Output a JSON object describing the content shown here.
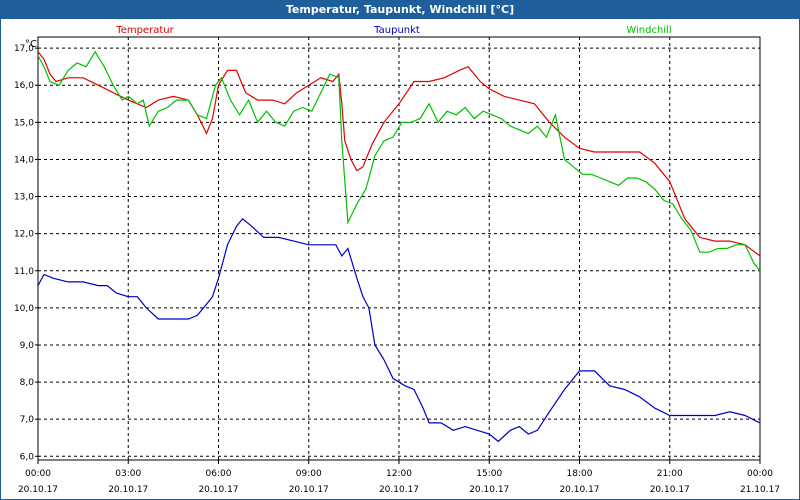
{
  "title": "Temperatur, Taupunkt, Windchill [°C]",
  "chart_data": {
    "type": "line",
    "title": "Temperatur, Taupunkt, Windchill [°C]",
    "ylabel": "°C",
    "xlabel": "",
    "ylim": [
      5.9,
      17.3
    ],
    "xlim": [
      0,
      24
    ],
    "grid": true,
    "y_ticks": [
      "17,0",
      "16,0",
      "15,0",
      "14,0",
      "13,0",
      "12,0",
      "11,0",
      "10,0",
      "9,0",
      "8,0",
      "7,0",
      "6,0"
    ],
    "x_ticks": [
      {
        "time": "00:00",
        "date": "20.10.17"
      },
      {
        "time": "03:00",
        "date": "20.10.17"
      },
      {
        "time": "06:00",
        "date": "20.10.17"
      },
      {
        "time": "09:00",
        "date": "20.10.17"
      },
      {
        "time": "12:00",
        "date": "20.10.17"
      },
      {
        "time": "15:00",
        "date": "20.10.17"
      },
      {
        "time": "18:00",
        "date": "20.10.17"
      },
      {
        "time": "21:00",
        "date": "20.10.17"
      },
      {
        "time": "00:00",
        "date": "21.10.17"
      }
    ],
    "series": [
      {
        "name": "Temperatur",
        "color": "#e00000",
        "points": [
          [
            0,
            16.9
          ],
          [
            0.2,
            16.7
          ],
          [
            0.4,
            16.3
          ],
          [
            0.6,
            16.1
          ],
          [
            1.0,
            16.2
          ],
          [
            1.5,
            16.2
          ],
          [
            2.0,
            16.0
          ],
          [
            2.5,
            15.8
          ],
          [
            3.0,
            15.6
          ],
          [
            3.3,
            15.5
          ],
          [
            3.6,
            15.4
          ],
          [
            4.0,
            15.6
          ],
          [
            4.5,
            15.7
          ],
          [
            5.0,
            15.6
          ],
          [
            5.3,
            15.2
          ],
          [
            5.6,
            14.7
          ],
          [
            5.8,
            15.1
          ],
          [
            6.0,
            16.0
          ],
          [
            6.3,
            16.4
          ],
          [
            6.6,
            16.4
          ],
          [
            6.9,
            15.8
          ],
          [
            7.3,
            15.6
          ],
          [
            7.8,
            15.6
          ],
          [
            8.2,
            15.5
          ],
          [
            8.6,
            15.8
          ],
          [
            9.0,
            16.0
          ],
          [
            9.4,
            16.2
          ],
          [
            9.8,
            16.1
          ],
          [
            10.0,
            16.3
          ],
          [
            10.1,
            15.5
          ],
          [
            10.2,
            14.5
          ],
          [
            10.4,
            14.0
          ],
          [
            10.6,
            13.7
          ],
          [
            10.8,
            13.8
          ],
          [
            11.1,
            14.4
          ],
          [
            11.5,
            15.0
          ],
          [
            12.0,
            15.5
          ],
          [
            12.5,
            16.1
          ],
          [
            13.0,
            16.1
          ],
          [
            13.5,
            16.2
          ],
          [
            14.0,
            16.4
          ],
          [
            14.3,
            16.5
          ],
          [
            14.7,
            16.1
          ],
          [
            15.0,
            15.9
          ],
          [
            15.5,
            15.7
          ],
          [
            16.0,
            15.6
          ],
          [
            16.5,
            15.5
          ],
          [
            17.0,
            15.0
          ],
          [
            17.5,
            14.6
          ],
          [
            18.0,
            14.3
          ],
          [
            18.5,
            14.2
          ],
          [
            19.0,
            14.2
          ],
          [
            19.5,
            14.2
          ],
          [
            20.0,
            14.2
          ],
          [
            20.5,
            13.9
          ],
          [
            21.0,
            13.4
          ],
          [
            21.5,
            12.4
          ],
          [
            22.0,
            11.9
          ],
          [
            22.5,
            11.8
          ],
          [
            23.0,
            11.8
          ],
          [
            23.5,
            11.7
          ],
          [
            24.0,
            11.4
          ]
        ]
      },
      {
        "name": "Taupunkt",
        "color": "#0000c8",
        "points": [
          [
            0,
            10.6
          ],
          [
            0.2,
            10.9
          ],
          [
            0.5,
            10.8
          ],
          [
            1.0,
            10.7
          ],
          [
            1.5,
            10.7
          ],
          [
            2.0,
            10.6
          ],
          [
            2.3,
            10.6
          ],
          [
            2.6,
            10.4
          ],
          [
            3.0,
            10.3
          ],
          [
            3.3,
            10.3
          ],
          [
            3.6,
            10.0
          ],
          [
            4.0,
            9.7
          ],
          [
            4.5,
            9.7
          ],
          [
            5.0,
            9.7
          ],
          [
            5.3,
            9.8
          ],
          [
            5.6,
            10.1
          ],
          [
            5.8,
            10.3
          ],
          [
            6.0,
            10.8
          ],
          [
            6.3,
            11.7
          ],
          [
            6.6,
            12.2
          ],
          [
            6.8,
            12.4
          ],
          [
            7.1,
            12.2
          ],
          [
            7.5,
            11.9
          ],
          [
            8.0,
            11.9
          ],
          [
            8.5,
            11.8
          ],
          [
            9.0,
            11.7
          ],
          [
            9.5,
            11.7
          ],
          [
            9.9,
            11.7
          ],
          [
            10.1,
            11.4
          ],
          [
            10.3,
            11.6
          ],
          [
            10.6,
            10.8
          ],
          [
            10.8,
            10.3
          ],
          [
            11.0,
            10.0
          ],
          [
            11.2,
            9.0
          ],
          [
            11.5,
            8.6
          ],
          [
            11.8,
            8.1
          ],
          [
            12.2,
            7.9
          ],
          [
            12.5,
            7.8
          ],
          [
            12.8,
            7.3
          ],
          [
            13.0,
            6.9
          ],
          [
            13.4,
            6.9
          ],
          [
            13.8,
            6.7
          ],
          [
            14.2,
            6.8
          ],
          [
            14.6,
            6.7
          ],
          [
            15.0,
            6.6
          ],
          [
            15.3,
            6.4
          ],
          [
            15.7,
            6.7
          ],
          [
            16.0,
            6.8
          ],
          [
            16.3,
            6.6
          ],
          [
            16.6,
            6.7
          ],
          [
            17.0,
            7.2
          ],
          [
            17.5,
            7.8
          ],
          [
            18.0,
            8.3
          ],
          [
            18.5,
            8.3
          ],
          [
            19.0,
            7.9
          ],
          [
            19.5,
            7.8
          ],
          [
            20.0,
            7.6
          ],
          [
            20.5,
            7.3
          ],
          [
            21.0,
            7.1
          ],
          [
            21.5,
            7.1
          ],
          [
            22.0,
            7.1
          ],
          [
            22.5,
            7.1
          ],
          [
            23.0,
            7.2
          ],
          [
            23.5,
            7.1
          ],
          [
            24.0,
            6.9
          ]
        ]
      },
      {
        "name": "Windchill",
        "color": "#00c000",
        "points": [
          [
            0,
            16.8
          ],
          [
            0.2,
            16.5
          ],
          [
            0.4,
            16.1
          ],
          [
            0.7,
            16.0
          ],
          [
            1.0,
            16.4
          ],
          [
            1.3,
            16.6
          ],
          [
            1.6,
            16.5
          ],
          [
            1.9,
            16.9
          ],
          [
            2.2,
            16.5
          ],
          [
            2.5,
            16.0
          ],
          [
            2.8,
            15.6
          ],
          [
            3.0,
            15.7
          ],
          [
            3.3,
            15.5
          ],
          [
            3.5,
            15.6
          ],
          [
            3.7,
            14.9
          ],
          [
            4.0,
            15.3
          ],
          [
            4.3,
            15.4
          ],
          [
            4.6,
            15.6
          ],
          [
            5.0,
            15.6
          ],
          [
            5.3,
            15.2
          ],
          [
            5.6,
            15.1
          ],
          [
            5.9,
            16.0
          ],
          [
            6.1,
            16.2
          ],
          [
            6.4,
            15.6
          ],
          [
            6.7,
            15.2
          ],
          [
            7.0,
            15.6
          ],
          [
            7.3,
            15.0
          ],
          [
            7.6,
            15.3
          ],
          [
            7.9,
            15.0
          ],
          [
            8.2,
            14.9
          ],
          [
            8.5,
            15.3
          ],
          [
            8.8,
            15.4
          ],
          [
            9.1,
            15.3
          ],
          [
            9.4,
            15.8
          ],
          [
            9.7,
            16.3
          ],
          [
            10.0,
            16.2
          ],
          [
            10.1,
            14.5
          ],
          [
            10.3,
            12.3
          ],
          [
            10.6,
            12.8
          ],
          [
            10.9,
            13.2
          ],
          [
            11.2,
            14.1
          ],
          [
            11.5,
            14.5
          ],
          [
            11.8,
            14.6
          ],
          [
            12.1,
            15.0
          ],
          [
            12.4,
            15.0
          ],
          [
            12.7,
            15.1
          ],
          [
            13.0,
            15.5
          ],
          [
            13.3,
            15.0
          ],
          [
            13.6,
            15.3
          ],
          [
            13.9,
            15.2
          ],
          [
            14.2,
            15.4
          ],
          [
            14.5,
            15.1
          ],
          [
            14.8,
            15.3
          ],
          [
            15.1,
            15.2
          ],
          [
            15.4,
            15.1
          ],
          [
            15.7,
            14.9
          ],
          [
            16.0,
            14.8
          ],
          [
            16.3,
            14.7
          ],
          [
            16.6,
            14.9
          ],
          [
            16.9,
            14.6
          ],
          [
            17.2,
            15.2
          ],
          [
            17.5,
            14.0
          ],
          [
            17.8,
            13.8
          ],
          [
            18.1,
            13.6
          ],
          [
            18.4,
            13.6
          ],
          [
            18.7,
            13.5
          ],
          [
            19.0,
            13.4
          ],
          [
            19.3,
            13.3
          ],
          [
            19.6,
            13.5
          ],
          [
            19.9,
            13.5
          ],
          [
            20.2,
            13.4
          ],
          [
            20.5,
            13.2
          ],
          [
            20.8,
            12.9
          ],
          [
            21.1,
            12.8
          ],
          [
            21.4,
            12.4
          ],
          [
            21.7,
            12.1
          ],
          [
            22.0,
            11.5
          ],
          [
            22.3,
            11.5
          ],
          [
            22.6,
            11.6
          ],
          [
            22.9,
            11.6
          ],
          [
            23.2,
            11.7
          ],
          [
            23.5,
            11.7
          ],
          [
            23.8,
            11.2
          ],
          [
            24.0,
            11.0
          ]
        ]
      }
    ]
  }
}
